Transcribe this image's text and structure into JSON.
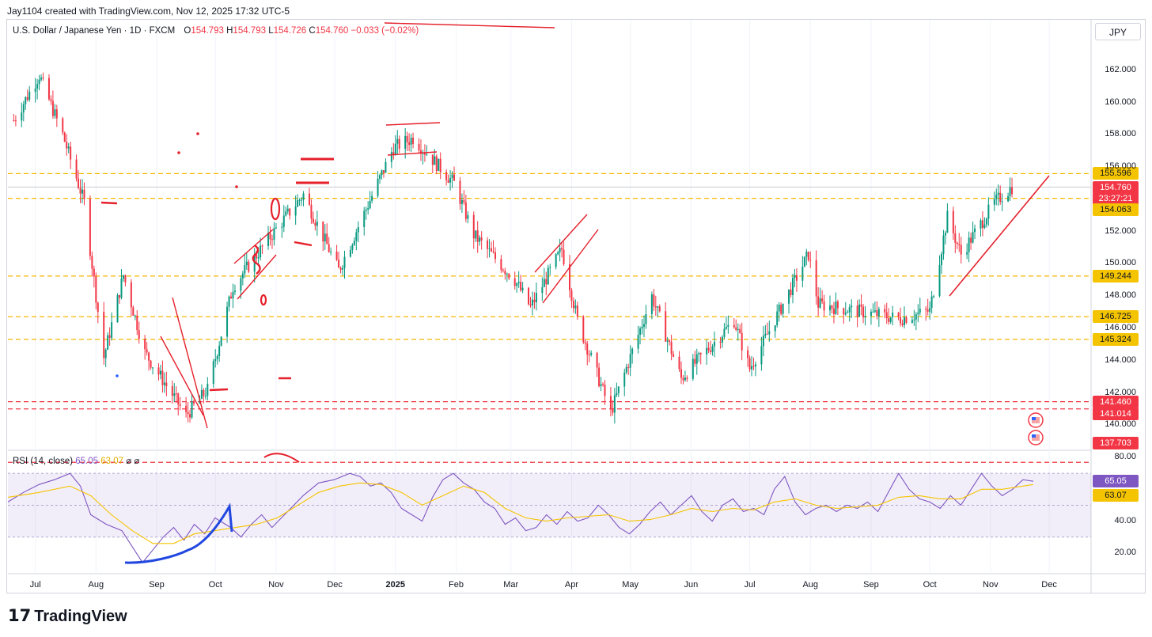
{
  "header": {
    "created_by": "Jay1104 created with TradingView.com, Nov 12, 2025 17:32 UTC-5",
    "symbol": "U.S. Dollar / Japanese Yen · 1D · FXCM",
    "o_label": "O",
    "o_value": "154.793",
    "h_label": "H",
    "h_value": "154.793",
    "l_label": "L",
    "l_value": "154.726",
    "c_label": "C",
    "c_value": "154.760",
    "change": "−0.033 (−0.02%)",
    "currency": "JPY"
  },
  "rsi_legend": {
    "label": "RSI (14, close)",
    "rsi": "65.05",
    "ma": "63.07",
    "icons": [
      "eye-off-icon",
      "eye-off-icon"
    ]
  },
  "price_labels": {
    "level_155": "155.596",
    "last": "154.760",
    "countdown": "23:27:21",
    "level_154": "154.063",
    "level_149": "149.244",
    "level_146": "146.725",
    "level_145": "145.324",
    "level_141a": "141.460",
    "level_141b": "141.014",
    "level_137": "137.703",
    "rsi_val": "65.05",
    "rsi_ma": "63.07"
  },
  "brand": "TradingView",
  "chart_data": [
    {
      "type": "candlestick",
      "title": "U.S. Dollar / Japanese Yen · 1D · FXCM",
      "x_ticks": [
        "Jul",
        "Aug",
        "Sep",
        "Oct",
        "Nov",
        "Dec",
        "2025",
        "Feb",
        "Mar",
        "Apr",
        "May",
        "Jun",
        "Jul",
        "Aug",
        "Sep",
        "Oct",
        "Nov",
        "Dec"
      ],
      "y_ticks": [
        140,
        142,
        144,
        146,
        148,
        150,
        152,
        156,
        158,
        160,
        162
      ],
      "y_tick_labels": [
        "140.000",
        "142.000",
        "144.000",
        "146.000",
        "148.000",
        "150.000",
        "152.000",
        "156.000",
        "158.000",
        "160.000",
        "162.000"
      ],
      "ylim": [
        138.5,
        164
      ],
      "horizontal_levels": [
        {
          "value": 155.596,
          "color": "#f5b700",
          "style": "dashed"
        },
        {
          "value": 154.063,
          "color": "#f5b700",
          "style": "dashed"
        },
        {
          "value": 149.244,
          "color": "#f5b700",
          "style": "dashed"
        },
        {
          "value": 146.725,
          "color": "#f5b700",
          "style": "dashed"
        },
        {
          "value": 145.324,
          "color": "#f5b700",
          "style": "dashed"
        },
        {
          "value": 141.46,
          "color": "#f23645",
          "style": "dashed"
        },
        {
          "value": 141.014,
          "color": "#f23645",
          "style": "dashed"
        },
        {
          "value": 137.703,
          "color": "#f23645",
          "style": "dashed"
        }
      ],
      "last_price": 154.76,
      "approx_close_path": [
        {
          "x": "2024-06-20",
          "close": 158.9
        },
        {
          "x": "2024-07-03",
          "close": 161.7
        },
        {
          "x": "2024-07-15",
          "close": 158.0
        },
        {
          "x": "2024-07-26",
          "close": 153.8
        },
        {
          "x": "2024-08-05",
          "close": 144.2
        },
        {
          "x": "2024-08-15",
          "close": 149.3
        },
        {
          "x": "2024-08-26",
          "close": 144.5
        },
        {
          "x": "2024-09-16",
          "close": 140.6
        },
        {
          "x": "2024-09-27",
          "close": 142.2
        },
        {
          "x": "2024-10-10",
          "close": 148.6
        },
        {
          "x": "2024-10-31",
          "close": 152.0
        },
        {
          "x": "2024-11-15",
          "close": 154.3
        },
        {
          "x": "2024-12-03",
          "close": 149.6
        },
        {
          "x": "2024-12-31",
          "close": 157.2
        },
        {
          "x": "2025-01-10",
          "close": 157.8
        },
        {
          "x": "2025-01-31",
          "close": 155.0
        },
        {
          "x": "2025-02-10",
          "close": 151.8
        },
        {
          "x": "2025-03-03",
          "close": 149.0
        },
        {
          "x": "2025-03-11",
          "close": 147.3
        },
        {
          "x": "2025-03-27",
          "close": 150.9
        },
        {
          "x": "2025-04-04",
          "close": 146.5
        },
        {
          "x": "2025-04-21",
          "close": 140.8
        },
        {
          "x": "2025-05-12",
          "close": 148.0
        },
        {
          "x": "2025-05-27",
          "close": 142.9
        },
        {
          "x": "2025-06-23",
          "close": 146.5
        },
        {
          "x": "2025-07-01",
          "close": 143.5
        },
        {
          "x": "2025-07-31",
          "close": 150.6
        },
        {
          "x": "2025-08-05",
          "close": 147.5
        },
        {
          "x": "2025-09-16",
          "close": 146.6
        },
        {
          "x": "2025-10-01",
          "close": 147.1
        },
        {
          "x": "2025-10-10",
          "close": 152.9
        },
        {
          "x": "2025-10-17",
          "close": 150.6
        },
        {
          "x": "2025-11-03",
          "close": 153.8
        },
        {
          "x": "2025-11-12",
          "close": 154.76
        }
      ]
    },
    {
      "type": "line",
      "title": "RSI (14, close)",
      "y_ticks": [
        20,
        40,
        80
      ],
      "y_tick_labels": [
        "20.00",
        "40.00",
        "80.00"
      ],
      "ylim": [
        7,
        84
      ],
      "band": [
        30,
        70
      ],
      "series": [
        {
          "name": "RSI",
          "color": "#7e57c2",
          "last": 65.05,
          "points": [
            [
              0,
              52
            ],
            [
              3,
              58
            ],
            [
              6,
              63
            ],
            [
              9,
              66
            ],
            [
              12,
              70
            ],
            [
              14,
              62
            ],
            [
              16,
              44
            ],
            [
              19,
              38
            ],
            [
              22,
              34
            ],
            [
              24,
              24
            ],
            [
              26,
              14
            ],
            [
              28,
              22
            ],
            [
              30,
              30
            ],
            [
              32,
              36
            ],
            [
              34,
              28
            ],
            [
              36,
              38
            ],
            [
              38,
              32
            ],
            [
              40,
              42
            ],
            [
              43,
              36
            ],
            [
              45,
              30
            ],
            [
              47,
              38
            ],
            [
              49,
              44
            ],
            [
              51,
              36
            ],
            [
              54,
              46
            ],
            [
              57,
              56
            ],
            [
              60,
              64
            ],
            [
              63,
              66
            ],
            [
              66,
              70
            ],
            [
              68,
              68
            ],
            [
              70,
              62
            ],
            [
              72,
              64
            ],
            [
              74,
              58
            ],
            [
              76,
              48
            ],
            [
              78,
              44
            ],
            [
              80,
              40
            ],
            [
              82,
              55
            ],
            [
              84,
              66
            ],
            [
              86,
              70
            ],
            [
              88,
              64
            ],
            [
              90,
              60
            ],
            [
              92,
              52
            ],
            [
              94,
              48
            ],
            [
              96,
              38
            ],
            [
              98,
              42
            ],
            [
              100,
              34
            ],
            [
              102,
              36
            ],
            [
              104,
              44
            ],
            [
              106,
              38
            ],
            [
              108,
              46
            ],
            [
              110,
              40
            ],
            [
              112,
              42
            ],
            [
              114,
              50
            ],
            [
              116,
              44
            ],
            [
              118,
              36
            ],
            [
              120,
              32
            ],
            [
              122,
              38
            ],
            [
              124,
              46
            ],
            [
              126,
              52
            ],
            [
              128,
              44
            ],
            [
              130,
              50
            ],
            [
              132,
              56
            ],
            [
              134,
              46
            ],
            [
              136,
              40
            ],
            [
              138,
              50
            ],
            [
              140,
              54
            ],
            [
              142,
              46
            ],
            [
              144,
              48
            ],
            [
              146,
              44
            ],
            [
              148,
              60
            ],
            [
              150,
              68
            ],
            [
              152,
              52
            ],
            [
              154,
              44
            ],
            [
              156,
              48
            ],
            [
              158,
              50
            ],
            [
              160,
              46
            ],
            [
              162,
              50
            ],
            [
              164,
              48
            ],
            [
              166,
              52
            ],
            [
              168,
              46
            ],
            [
              170,
              58
            ],
            [
              172,
              70
            ],
            [
              174,
              60
            ],
            [
              176,
              54
            ],
            [
              178,
              52
            ],
            [
              180,
              48
            ],
            [
              182,
              56
            ],
            [
              184,
              50
            ],
            [
              186,
              60
            ],
            [
              188,
              70
            ],
            [
              190,
              62
            ],
            [
              192,
              56
            ],
            [
              194,
              60
            ],
            [
              196,
              66
            ],
            [
              198,
              65
            ]
          ]
        },
        {
          "name": "RSI-based MA",
          "color": "#f5c400",
          "last": 63.07,
          "points": [
            [
              0,
              55
            ],
            [
              6,
              58
            ],
            [
              12,
              62
            ],
            [
              16,
              56
            ],
            [
              20,
              44
            ],
            [
              24,
              34
            ],
            [
              28,
              26
            ],
            [
              32,
              26
            ],
            [
              36,
              32
            ],
            [
              40,
              34
            ],
            [
              44,
              36
            ],
            [
              48,
              38
            ],
            [
              52,
              42
            ],
            [
              56,
              50
            ],
            [
              60,
              58
            ],
            [
              64,
              62
            ],
            [
              68,
              64
            ],
            [
              72,
              63
            ],
            [
              76,
              58
            ],
            [
              80,
              50
            ],
            [
              84,
              56
            ],
            [
              88,
              62
            ],
            [
              92,
              58
            ],
            [
              96,
              48
            ],
            [
              100,
              42
            ],
            [
              104,
              40
            ],
            [
              108,
              42
            ],
            [
              112,
              43
            ],
            [
              116,
              44
            ],
            [
              120,
              40
            ],
            [
              124,
              41
            ],
            [
              128,
              44
            ],
            [
              132,
              48
            ],
            [
              136,
              46
            ],
            [
              140,
              48
            ],
            [
              144,
              47
            ],
            [
              148,
              52
            ],
            [
              152,
              54
            ],
            [
              156,
              50
            ],
            [
              160,
              48
            ],
            [
              164,
              49
            ],
            [
              168,
              50
            ],
            [
              172,
              55
            ],
            [
              176,
              56
            ],
            [
              180,
              54
            ],
            [
              184,
              54
            ],
            [
              188,
              60
            ],
            [
              192,
              60
            ],
            [
              196,
              62
            ],
            [
              198,
              63
            ]
          ]
        }
      ]
    }
  ]
}
